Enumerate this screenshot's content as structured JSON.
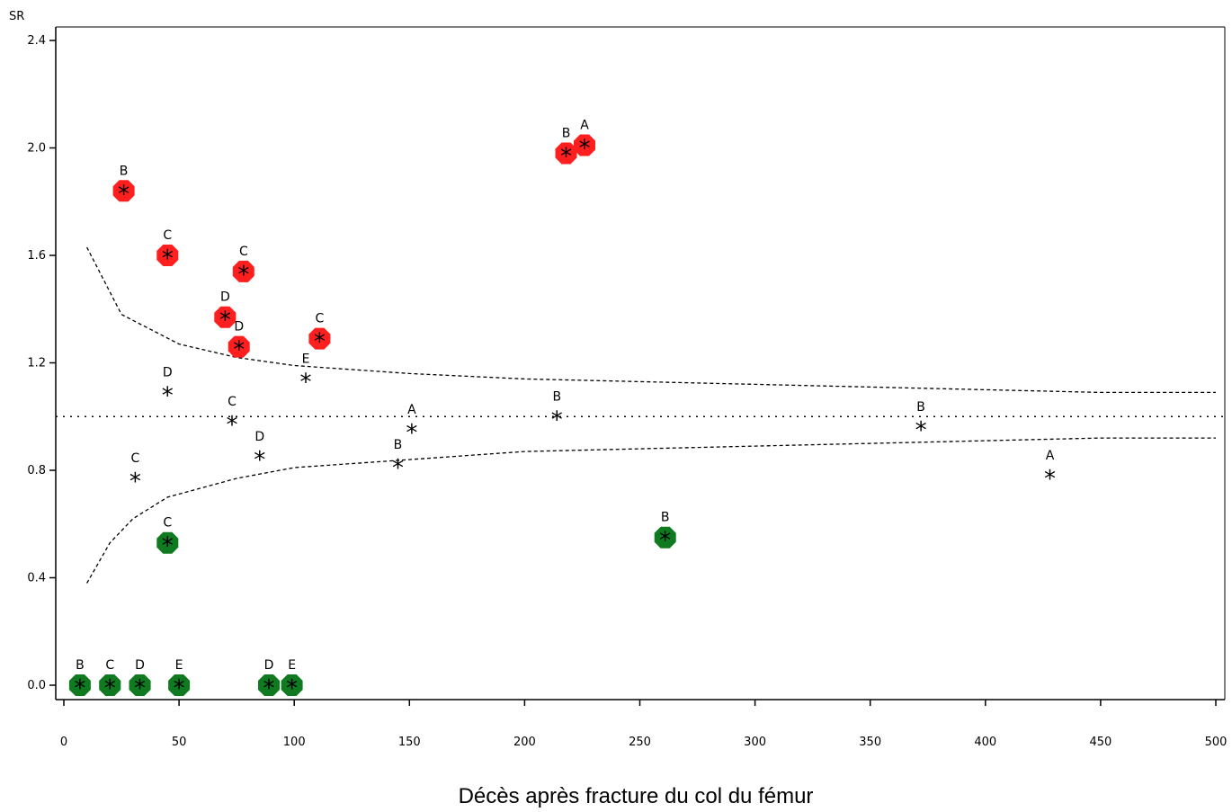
{
  "chart_data": {
    "type": "scatter",
    "xlabel": "Décès après fracture du col du fémur",
    "ylabel": "SR",
    "xlim": [
      0,
      500
    ],
    "ylim": [
      -0.05,
      2.45
    ],
    "x_ticks": [
      0,
      50,
      100,
      150,
      200,
      250,
      300,
      350,
      400,
      450,
      500
    ],
    "y_ticks": [
      0.0,
      0.4,
      0.8,
      1.2,
      1.6,
      2.0,
      2.4
    ],
    "y_tick_labels": [
      "0.0",
      "0.4",
      "0.8",
      "1.2",
      "1.6",
      "2.0",
      "2.4"
    ],
    "reference_line_y": 1.0,
    "colors": {
      "high": "#ff1f1f",
      "low": "#0f7a1f"
    },
    "points": [
      {
        "x": 7,
        "y": 0.0,
        "label": "B",
        "status": "low"
      },
      {
        "x": 20,
        "y": 0.0,
        "label": "C",
        "status": "low"
      },
      {
        "x": 33,
        "y": 0.0,
        "label": "D",
        "status": "low"
      },
      {
        "x": 50,
        "y": 0.0,
        "label": "E",
        "status": "low"
      },
      {
        "x": 89,
        "y": 0.0,
        "label": "D",
        "status": "low"
      },
      {
        "x": 99,
        "y": 0.0,
        "label": "E",
        "status": "low"
      },
      {
        "x": 45,
        "y": 0.53,
        "label": "C",
        "status": "low"
      },
      {
        "x": 261,
        "y": 0.55,
        "label": "B",
        "status": "low"
      },
      {
        "x": 26,
        "y": 1.84,
        "label": "B",
        "status": "high"
      },
      {
        "x": 45,
        "y": 1.6,
        "label": "C",
        "status": "high"
      },
      {
        "x": 78,
        "y": 1.54,
        "label": "C",
        "status": "high"
      },
      {
        "x": 70,
        "y": 1.37,
        "label": "D",
        "status": "high"
      },
      {
        "x": 76,
        "y": 1.26,
        "label": "D",
        "status": "high"
      },
      {
        "x": 111,
        "y": 1.29,
        "label": "C",
        "status": "high"
      },
      {
        "x": 218,
        "y": 1.98,
        "label": "B",
        "status": "high"
      },
      {
        "x": 226,
        "y": 2.01,
        "label": "A",
        "status": "high"
      },
      {
        "x": 45,
        "y": 1.09,
        "label": "D",
        "status": "none"
      },
      {
        "x": 73,
        "y": 0.98,
        "label": "C",
        "status": "none"
      },
      {
        "x": 85,
        "y": 0.85,
        "label": "D",
        "status": "none"
      },
      {
        "x": 31,
        "y": 0.77,
        "label": "C",
        "status": "none"
      },
      {
        "x": 105,
        "y": 1.14,
        "label": "E",
        "status": "none"
      },
      {
        "x": 145,
        "y": 0.82,
        "label": "B",
        "status": "none"
      },
      {
        "x": 151,
        "y": 0.95,
        "label": "A",
        "status": "none"
      },
      {
        "x": 214,
        "y": 1.0,
        "label": "B",
        "status": "none"
      },
      {
        "x": 372,
        "y": 0.96,
        "label": "B",
        "status": "none"
      },
      {
        "x": 428,
        "y": 0.78,
        "label": "A",
        "status": "none"
      }
    ],
    "control_limits": {
      "upper": [
        [
          10,
          1.63
        ],
        [
          25,
          1.38
        ],
        [
          50,
          1.27
        ],
        [
          75,
          1.22
        ],
        [
          100,
          1.19
        ],
        [
          150,
          1.16
        ],
        [
          200,
          1.14
        ],
        [
          250,
          1.13
        ],
        [
          300,
          1.12
        ],
        [
          350,
          1.11
        ],
        [
          400,
          1.1
        ],
        [
          450,
          1.09
        ],
        [
          500,
          1.09
        ]
      ],
      "lower": [
        [
          10,
          0.38
        ],
        [
          20,
          0.53
        ],
        [
          30,
          0.62
        ],
        [
          45,
          0.7
        ],
        [
          75,
          0.77
        ],
        [
          100,
          0.81
        ],
        [
          150,
          0.84
        ],
        [
          200,
          0.87
        ],
        [
          250,
          0.88
        ],
        [
          300,
          0.89
        ],
        [
          350,
          0.9
        ],
        [
          400,
          0.91
        ],
        [
          450,
          0.92
        ],
        [
          500,
          0.92
        ]
      ]
    }
  }
}
